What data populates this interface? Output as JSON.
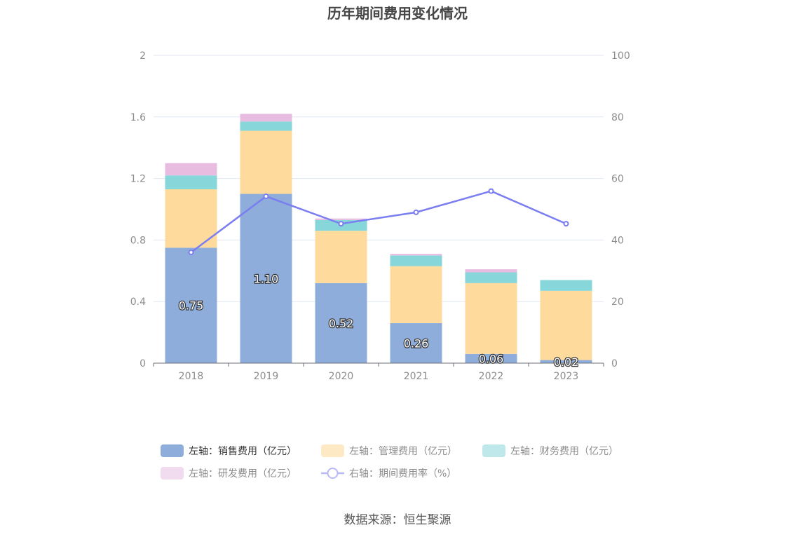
{
  "chart_data": {
    "type": "bar",
    "title": "历年期间费用变化情况",
    "categories": [
      "2018",
      "2019",
      "2020",
      "2021",
      "2022",
      "2023"
    ],
    "left_axis": {
      "ylim": [
        0,
        2
      ],
      "ticks": [
        "0",
        "0.4",
        "0.8",
        "1.2",
        "1.6",
        "2"
      ]
    },
    "right_axis": {
      "ylim": [
        0,
        100
      ],
      "ticks": [
        "0",
        "20",
        "40",
        "60",
        "80",
        "100"
      ]
    },
    "series": [
      {
        "name": "左轴：销售费用（亿元）",
        "type": "bar",
        "stack": "fee",
        "axis": "left",
        "color": "#8eadda",
        "values": [
          0.75,
          1.1,
          0.52,
          0.26,
          0.06,
          0.02
        ],
        "labels": [
          "0.75",
          "1.10",
          "0.52",
          "0.26",
          "0.06",
          "0.02"
        ]
      },
      {
        "name": "左轴：管理费用（亿元）",
        "type": "bar",
        "stack": "fee",
        "axis": "left",
        "color": "#fedb9c",
        "values": [
          0.38,
          0.41,
          0.34,
          0.37,
          0.46,
          0.45
        ]
      },
      {
        "name": "左轴：财务费用（亿元）",
        "type": "bar",
        "stack": "fee",
        "axis": "left",
        "color": "#86d6da",
        "values": [
          0.09,
          0.06,
          0.07,
          0.07,
          0.07,
          0.07
        ]
      },
      {
        "name": "左轴：研发费用（亿元）",
        "type": "bar",
        "stack": "fee",
        "axis": "left",
        "color": "#e8bce0",
        "values": [
          0.08,
          0.05,
          0.01,
          0.01,
          0.02,
          0.0
        ]
      },
      {
        "name": "右轴：期间费用率（%）",
        "type": "line",
        "axis": "right",
        "color": "#7b7ef0",
        "values": [
          36.0,
          54.2,
          45.3,
          49.0,
          55.9,
          45.3
        ]
      }
    ],
    "legend": [
      {
        "label": "左轴：销售费用（亿元）",
        "color": "#8eadda",
        "marker": "rect",
        "active": true
      },
      {
        "label": "左轴：管理费用（亿元）",
        "color": "#fde9c4",
        "marker": "rect",
        "active": false
      },
      {
        "label": "左轴：财务费用（亿元）",
        "color": "#bfe8ea",
        "marker": "rect",
        "active": false
      },
      {
        "label": "左轴：研发费用（亿元）",
        "color": "#f1dbee",
        "marker": "rect",
        "active": false
      },
      {
        "label": "右轴：期间费用率（%）",
        "color": "#b7b9f6",
        "marker": "line-circle",
        "active": false
      }
    ],
    "source": "数据来源：恒生聚源"
  }
}
